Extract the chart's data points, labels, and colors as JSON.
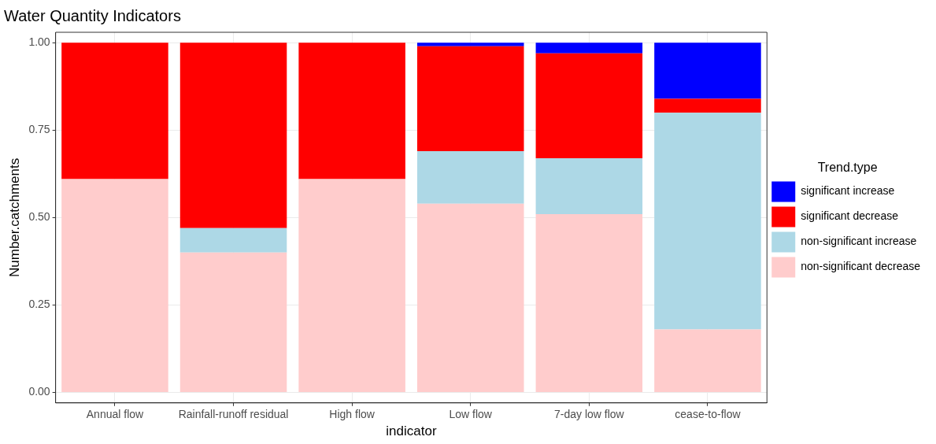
{
  "chart_data": {
    "type": "bar",
    "title": "Water Quantity Indicators",
    "xlabel": "indicator",
    "ylabel": "Number.catchments",
    "legend_title": "Trend.type",
    "categories": [
      "Annual flow",
      "Rainfall-runoff residual",
      "High flow",
      "Low flow",
      "7-day low flow",
      "cease-to-flow"
    ],
    "stacked": true,
    "series": [
      {
        "name": "non-significant decrease",
        "color": "#ffcccc",
        "values": [
          0.61,
          0.4,
          0.61,
          0.54,
          0.51,
          0.18
        ]
      },
      {
        "name": "non-significant increase",
        "color": "#add8e6",
        "values": [
          0,
          0.07,
          0,
          0.15,
          0.16,
          0.62
        ]
      },
      {
        "name": "significant decrease",
        "color": "#ff0000",
        "values": [
          0.39,
          0.53,
          0.39,
          0.3,
          0.3,
          0.04
        ]
      },
      {
        "name": "significant increase",
        "color": "#0000ff",
        "values": [
          0,
          0,
          0,
          0.01,
          0.03,
          0.16
        ]
      }
    ],
    "ylim": [
      -0.03,
      1.03
    ],
    "yticks": [
      {
        "value": 0,
        "label": "0.00"
      },
      {
        "value": 0.25,
        "label": "0.25"
      },
      {
        "value": 0.5,
        "label": "0.50"
      },
      {
        "value": 0.75,
        "label": "0.75"
      },
      {
        "value": 1,
        "label": "1.00"
      }
    ],
    "grid": true,
    "legend": "right"
  }
}
